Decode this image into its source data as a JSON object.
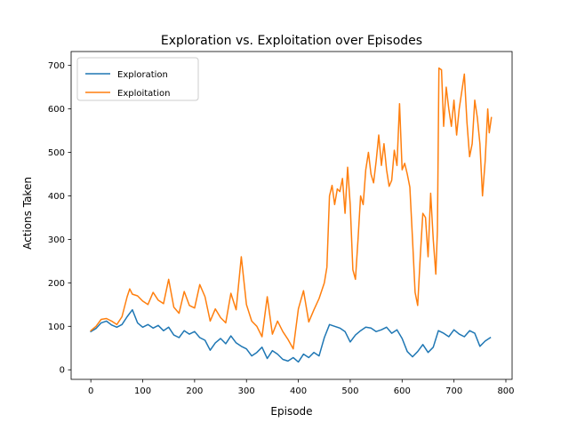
{
  "chart_data": {
    "type": "line",
    "title": "Exploration vs. Exploitation over Episodes",
    "xlabel": "Episode",
    "ylabel": "Actions Taken",
    "xlim": [
      -38,
      812
    ],
    "ylim": [
      -22,
      732
    ],
    "xticks": [
      0,
      100,
      200,
      300,
      400,
      500,
      600,
      700,
      800
    ],
    "yticks": [
      0,
      100,
      200,
      300,
      400,
      500,
      600,
      700
    ],
    "grid": false,
    "legend_position": "upper left",
    "series": [
      {
        "name": "Exploration",
        "color": "#1f77b4",
        "points": [
          [
            0,
            88
          ],
          [
            10,
            95
          ],
          [
            20,
            108
          ],
          [
            30,
            112
          ],
          [
            40,
            103
          ],
          [
            50,
            98
          ],
          [
            60,
            104
          ],
          [
            70,
            122
          ],
          [
            80,
            138
          ],
          [
            90,
            108
          ],
          [
            100,
            98
          ],
          [
            110,
            104
          ],
          [
            120,
            96
          ],
          [
            130,
            102
          ],
          [
            140,
            90
          ],
          [
            150,
            98
          ],
          [
            160,
            80
          ],
          [
            170,
            74
          ],
          [
            180,
            90
          ],
          [
            190,
            82
          ],
          [
            200,
            88
          ],
          [
            210,
            74
          ],
          [
            220,
            68
          ],
          [
            230,
            45
          ],
          [
            240,
            62
          ],
          [
            250,
            72
          ],
          [
            260,
            60
          ],
          [
            270,
            78
          ],
          [
            280,
            62
          ],
          [
            290,
            54
          ],
          [
            300,
            48
          ],
          [
            310,
            32
          ],
          [
            320,
            40
          ],
          [
            330,
            52
          ],
          [
            340,
            26
          ],
          [
            350,
            44
          ],
          [
            360,
            36
          ],
          [
            370,
            24
          ],
          [
            380,
            20
          ],
          [
            390,
            28
          ],
          [
            400,
            18
          ],
          [
            410,
            36
          ],
          [
            420,
            28
          ],
          [
            430,
            40
          ],
          [
            440,
            32
          ],
          [
            450,
            74
          ],
          [
            460,
            104
          ],
          [
            470,
            100
          ],
          [
            480,
            96
          ],
          [
            490,
            88
          ],
          [
            500,
            64
          ],
          [
            510,
            80
          ],
          [
            520,
            90
          ],
          [
            530,
            98
          ],
          [
            540,
            96
          ],
          [
            550,
            88
          ],
          [
            560,
            92
          ],
          [
            570,
            98
          ],
          [
            580,
            84
          ],
          [
            590,
            92
          ],
          [
            600,
            72
          ],
          [
            610,
            42
          ],
          [
            620,
            30
          ],
          [
            630,
            42
          ],
          [
            640,
            58
          ],
          [
            650,
            40
          ],
          [
            660,
            52
          ],
          [
            670,
            90
          ],
          [
            680,
            84
          ],
          [
            690,
            76
          ],
          [
            700,
            92
          ],
          [
            710,
            82
          ],
          [
            720,
            76
          ],
          [
            730,
            90
          ],
          [
            740,
            84
          ],
          [
            750,
            54
          ],
          [
            760,
            66
          ],
          [
            770,
            74
          ]
        ]
      },
      {
        "name": "Exploitation",
        "color": "#ff7f0e",
        "points": [
          [
            0,
            90
          ],
          [
            10,
            100
          ],
          [
            20,
            116
          ],
          [
            30,
            118
          ],
          [
            40,
            112
          ],
          [
            50,
            104
          ],
          [
            60,
            122
          ],
          [
            70,
            168
          ],
          [
            75,
            186
          ],
          [
            80,
            174
          ],
          [
            90,
            170
          ],
          [
            100,
            158
          ],
          [
            110,
            150
          ],
          [
            120,
            178
          ],
          [
            130,
            160
          ],
          [
            140,
            152
          ],
          [
            150,
            208
          ],
          [
            160,
            144
          ],
          [
            170,
            130
          ],
          [
            180,
            180
          ],
          [
            190,
            148
          ],
          [
            200,
            142
          ],
          [
            210,
            196
          ],
          [
            220,
            168
          ],
          [
            230,
            112
          ],
          [
            240,
            140
          ],
          [
            250,
            120
          ],
          [
            260,
            108
          ],
          [
            270,
            176
          ],
          [
            280,
            138
          ],
          [
            290,
            260
          ],
          [
            300,
            150
          ],
          [
            310,
            112
          ],
          [
            320,
            100
          ],
          [
            330,
            76
          ],
          [
            340,
            168
          ],
          [
            350,
            82
          ],
          [
            360,
            112
          ],
          [
            370,
            88
          ],
          [
            380,
            70
          ],
          [
            390,
            48
          ],
          [
            400,
            140
          ],
          [
            410,
            182
          ],
          [
            420,
            110
          ],
          [
            430,
            138
          ],
          [
            440,
            164
          ],
          [
            450,
            200
          ],
          [
            455,
            236
          ],
          [
            460,
            400
          ],
          [
            465,
            424
          ],
          [
            470,
            380
          ],
          [
            475,
            416
          ],
          [
            480,
            410
          ],
          [
            485,
            440
          ],
          [
            490,
            360
          ],
          [
            495,
            466
          ],
          [
            500,
            380
          ],
          [
            505,
            230
          ],
          [
            510,
            208
          ],
          [
            515,
            300
          ],
          [
            520,
            400
          ],
          [
            525,
            380
          ],
          [
            530,
            460
          ],
          [
            535,
            500
          ],
          [
            540,
            450
          ],
          [
            545,
            430
          ],
          [
            550,
            480
          ],
          [
            555,
            540
          ],
          [
            560,
            470
          ],
          [
            565,
            520
          ],
          [
            570,
            460
          ],
          [
            575,
            422
          ],
          [
            580,
            436
          ],
          [
            585,
            505
          ],
          [
            590,
            470
          ],
          [
            595,
            612
          ],
          [
            600,
            460
          ],
          [
            605,
            475
          ],
          [
            610,
            450
          ],
          [
            615,
            420
          ],
          [
            620,
            300
          ],
          [
            625,
            178
          ],
          [
            630,
            148
          ],
          [
            635,
            260
          ],
          [
            640,
            360
          ],
          [
            645,
            350
          ],
          [
            650,
            260
          ],
          [
            655,
            406
          ],
          [
            660,
            300
          ],
          [
            665,
            220
          ],
          [
            668,
            320
          ],
          [
            671,
            694
          ],
          [
            676,
            690
          ],
          [
            680,
            560
          ],
          [
            685,
            650
          ],
          [
            690,
            600
          ],
          [
            695,
            560
          ],
          [
            700,
            620
          ],
          [
            705,
            540
          ],
          [
            710,
            600
          ],
          [
            715,
            640
          ],
          [
            720,
            680
          ],
          [
            725,
            570
          ],
          [
            730,
            490
          ],
          [
            735,
            520
          ],
          [
            740,
            620
          ],
          [
            745,
            580
          ],
          [
            750,
            520
          ],
          [
            755,
            400
          ],
          [
            760,
            480
          ],
          [
            765,
            600
          ],
          [
            768,
            545
          ],
          [
            772,
            580
          ]
        ]
      }
    ]
  }
}
